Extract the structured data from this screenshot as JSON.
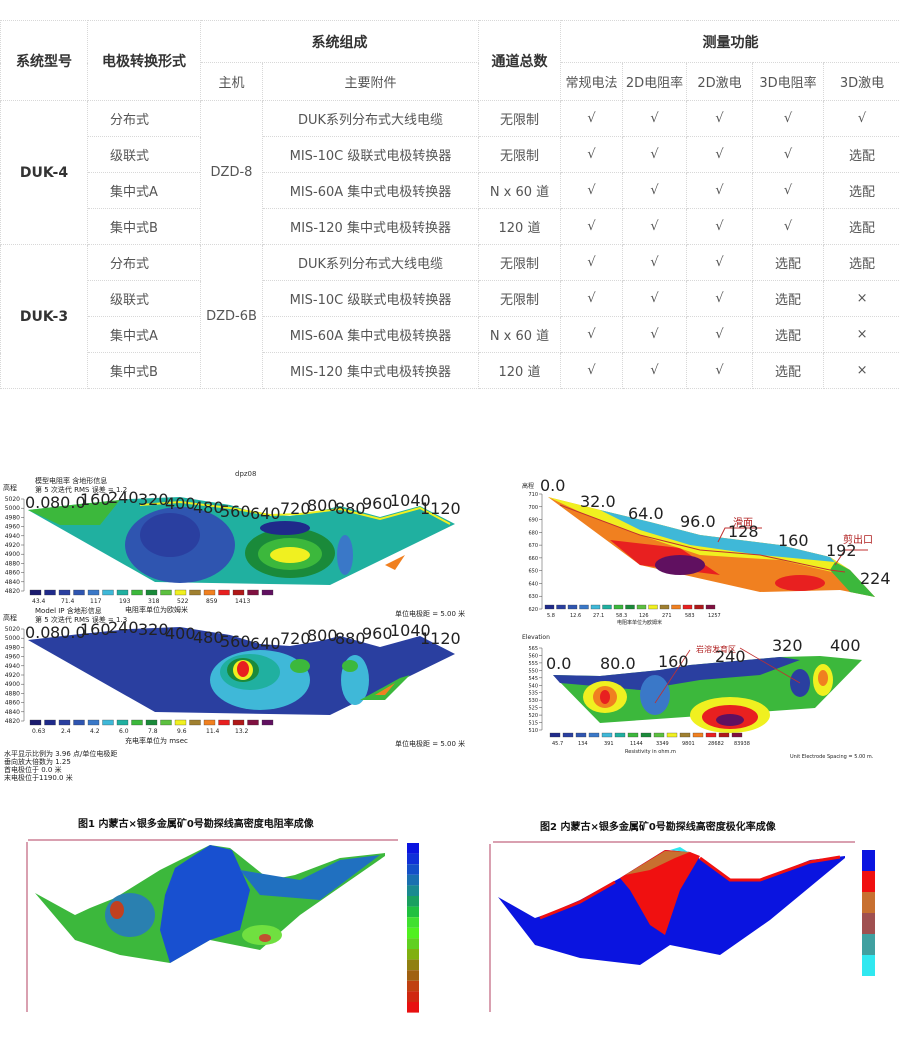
{
  "table": {
    "headers": {
      "model": "系统型号",
      "switch_form": "电极转换形式",
      "composition": "系统组成",
      "host": "主机",
      "accessory": "主要附件",
      "channels": "通道总数",
      "functions": "测量功能",
      "func_cols": [
        "常规电法",
        "2D电阻率",
        "2D激电",
        "3D电阻率",
        "3D激电"
      ]
    },
    "groups": [
      {
        "model": "DUK-4",
        "host": "DZD-8",
        "rows": [
          {
            "form": "分布式",
            "accessory": "DUK系列分布式大线电缆",
            "channels": "无限制",
            "funcs": [
              "√",
              "√",
              "√",
              "√",
              "√"
            ]
          },
          {
            "form": "级联式",
            "accessory": "MIS-10C 级联式电极转换器",
            "channels": "无限制",
            "funcs": [
              "√",
              "√",
              "√",
              "√",
              "选配"
            ]
          },
          {
            "form": "集中式A",
            "accessory": "MIS-60A 集中式电极转换器",
            "channels": "N x 60 道",
            "funcs": [
              "√",
              "√",
              "√",
              "√",
              "选配"
            ]
          },
          {
            "form": "集中式B",
            "accessory": "MIS-120 集中式电极转换器",
            "channels": "120 道",
            "funcs": [
              "√",
              "√",
              "√",
              "√",
              "选配"
            ]
          }
        ]
      },
      {
        "model": "DUK-3",
        "host": "DZD-6B",
        "rows": [
          {
            "form": "分布式",
            "accessory": "DUK系列分布式大线电缆",
            "channels": "无限制",
            "funcs": [
              "√",
              "√",
              "√",
              "选配",
              "选配"
            ]
          },
          {
            "form": "级联式",
            "accessory": "MIS-10C 级联式电极转换器",
            "channels": "无限制",
            "funcs": [
              "√",
              "√",
              "√",
              "选配",
              "×"
            ]
          },
          {
            "form": "集中式A",
            "accessory": "MIS-60A 集中式电极转换器",
            "channels": "N x 60 道",
            "funcs": [
              "√",
              "√",
              "√",
              "选配",
              "×"
            ]
          },
          {
            "form": "集中式B",
            "accessory": "MIS-120 集中式电极转换器",
            "channels": "120 道",
            "funcs": [
              "√",
              "√",
              "√",
              "选配",
              "×"
            ]
          }
        ]
      }
    ]
  },
  "scale_colors": [
    "#1a1a6e",
    "#1f2a8a",
    "#2a3fa0",
    "#2f55b0",
    "#3a78c8",
    "#3fb8d8",
    "#20b0a0",
    "#3cb83c",
    "#1a8a3a",
    "#5cc040",
    "#f0f020",
    "#a08030",
    "#f08020",
    "#e82020",
    "#b01818",
    "#801040",
    "#601060"
  ],
  "panel_a": {
    "title": "dpz08",
    "line1": "模型电阻率 含地形信息",
    "line2": "第 5 次迭代 RMS 误差 = 1.2",
    "ylabel": "高程",
    "yticks": [
      "5020",
      "5000",
      "4980",
      "4960",
      "4940",
      "4920",
      "4900",
      "4880",
      "4860",
      "4840",
      "4820"
    ],
    "xticks": [
      "0.0",
      "80.0",
      "160",
      "240",
      "320",
      "400",
      "480",
      "560",
      "640",
      "720",
      "800",
      "880",
      "960",
      "1040",
      "1120"
    ],
    "scale_labels": [
      "43.4",
      "71.4",
      "117",
      "193",
      "318",
      "522",
      "859",
      "1413"
    ],
    "unit": "电阻率单位为欧姆米",
    "spacing": "单位电极距 = 5.00 米"
  },
  "panel_b": {
    "line1": "Model IP 含地形信息",
    "line2": "第 5 次迭代 RMS 误差 = 1.3",
    "ylabel": "高程",
    "scale_labels": [
      "0.63",
      "2.4",
      "4.2",
      "6.0",
      "7.8",
      "9.6",
      "11.4",
      "13.2"
    ],
    "unit": "充电率单位为 msec",
    "spacing": "单位电极距 = 5.00 米",
    "notes": [
      "水平显示比例为 3.96 点/单位电极距",
      "垂向放大倍数为 1.25",
      "首电极位于 0.0  米",
      "末电极位于1190.0 米"
    ]
  },
  "panel_c": {
    "ylabel": "高程",
    "yticks": [
      "710",
      "700",
      "690",
      "680",
      "670",
      "660",
      "650",
      "640",
      "630",
      "620"
    ],
    "xticks": [
      "0.0",
      "32.0",
      "64.0",
      "96.0",
      "128",
      "160",
      "192",
      "224"
    ],
    "scale_labels": [
      "5.8",
      "12.6",
      "27.1",
      "58.3",
      "126",
      "271",
      "583",
      "1257"
    ],
    "unit": "电阻率单位为欧姆米",
    "annotations": [
      "滑面",
      "剪出口"
    ]
  },
  "panel_d": {
    "ylabel": "Elevation",
    "yticks": [
      "565",
      "560",
      "555",
      "550",
      "545",
      "540",
      "535",
      "530",
      "525",
      "520",
      "515",
      "510"
    ],
    "xticks": [
      "0.0",
      "80.0",
      "160",
      "240",
      "320",
      "400"
    ],
    "scale_labels": [
      "45.7",
      "134",
      "391",
      "1144",
      "3349",
      "9801",
      "28682",
      "83938"
    ],
    "unit": "Resistivity in ohm.m",
    "spacing": "Unit Electrode Spacing = 5.00 m.",
    "annotation": "岩溶发育区"
  },
  "fig1": {
    "title": "图1  内蒙古×银多金属矿0号勘探线高密度电阻率成像"
  },
  "fig2": {
    "title": "图2  内蒙古×银多金属矿0号勘探线高密度极化率成像",
    "scale_colors": [
      "#0a14e0",
      "#f01010",
      "#c87030",
      "#a05050",
      "#40a0a0",
      "#30e8f0"
    ]
  }
}
